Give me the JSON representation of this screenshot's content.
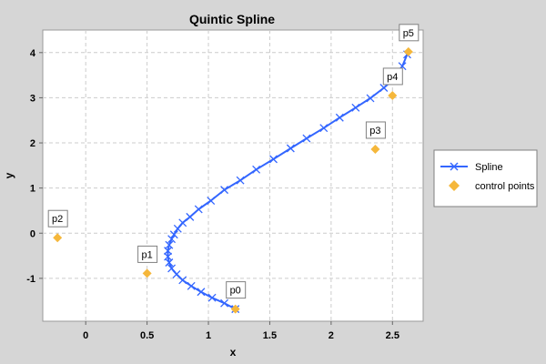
{
  "chart_data": {
    "type": "line",
    "title": "Quintic Spline",
    "xlabel": "x",
    "ylabel": "y",
    "xlim": [
      -0.35,
      2.75
    ],
    "ylim": [
      -1.95,
      4.5
    ],
    "xticks": [
      0,
      0.5,
      1,
      1.5,
      2,
      2.5
    ],
    "xtick_labels": [
      "0",
      "0.5",
      "1",
      "1.5",
      "2",
      "2.5"
    ],
    "yticks": [
      -1,
      0,
      1,
      2,
      3,
      4
    ],
    "ytick_labels": [
      "-1",
      "0",
      "1",
      "2",
      "3",
      "4"
    ],
    "grid": true,
    "legend_position": "right",
    "colors": {
      "page_background": "#d6d6d6",
      "plot_background": "#ffffff",
      "spline": "#3366ff",
      "control_points": "#f5b73b",
      "grid": "#cccccc"
    },
    "series": [
      {
        "name": "Spline",
        "kind": "line-with-x-markers",
        "x": [
          1.22,
          1.13,
          1.03,
          0.94,
          0.86,
          0.79,
          0.74,
          0.7,
          0.68,
          0.67,
          0.67,
          0.68,
          0.7,
          0.72,
          0.75,
          0.79,
          0.85,
          0.92,
          1.02,
          1.13,
          1.26,
          1.39,
          1.53,
          1.67,
          1.8,
          1.94,
          2.07,
          2.2,
          2.32,
          2.43,
          2.52,
          2.58,
          2.62
        ],
        "y": [
          -1.68,
          -1.55,
          -1.43,
          -1.3,
          -1.17,
          -1.04,
          -0.91,
          -0.78,
          -0.65,
          -0.52,
          -0.39,
          -0.26,
          -0.13,
          -0.03,
          0.1,
          0.23,
          0.36,
          0.53,
          0.72,
          0.96,
          1.17,
          1.41,
          1.64,
          1.88,
          2.1,
          2.33,
          2.56,
          2.78,
          2.99,
          3.22,
          3.44,
          3.7,
          3.96
        ]
      },
      {
        "name": "control points",
        "kind": "scatter-diamond",
        "points": [
          {
            "label": "p0",
            "x": 1.22,
            "y": -1.68
          },
          {
            "label": "p1",
            "x": 0.5,
            "y": -0.89
          },
          {
            "label": "p2",
            "x": -0.23,
            "y": -0.1
          },
          {
            "label": "p3",
            "x": 2.36,
            "y": 1.86
          },
          {
            "label": "p4",
            "x": 2.5,
            "y": 3.05
          },
          {
            "label": "p5",
            "x": 2.63,
            "y": 4.02
          }
        ]
      }
    ]
  }
}
